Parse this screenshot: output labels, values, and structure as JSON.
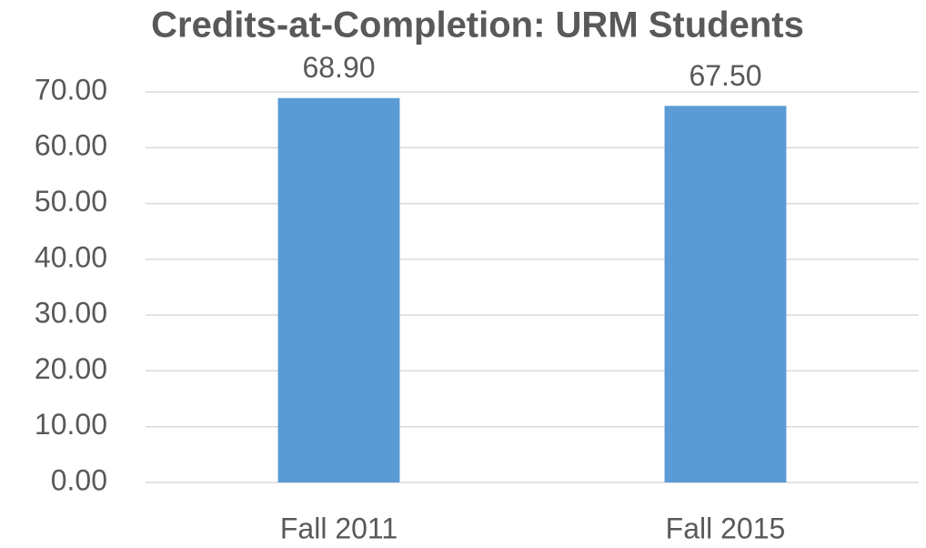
{
  "chart_data": {
    "type": "bar",
    "title": "Credits-at-Completion: URM Students",
    "categories": [
      "Fall 2011",
      "Fall 2015"
    ],
    "values": [
      68.9,
      67.5
    ],
    "value_labels": [
      "68.90",
      "67.50"
    ],
    "color": "#5b9bd5",
    "ylim": [
      0,
      70
    ],
    "yticks": [
      {
        "value": 0,
        "label": "0.00"
      },
      {
        "value": 10,
        "label": "10.00"
      },
      {
        "value": 20,
        "label": "20.00"
      },
      {
        "value": 30,
        "label": "30.00"
      },
      {
        "value": 40,
        "label": "40.00"
      },
      {
        "value": 50,
        "label": "50.00"
      },
      {
        "value": 60,
        "label": "60.00"
      },
      {
        "value": 70,
        "label": "70.00"
      }
    ],
    "grid": true
  }
}
